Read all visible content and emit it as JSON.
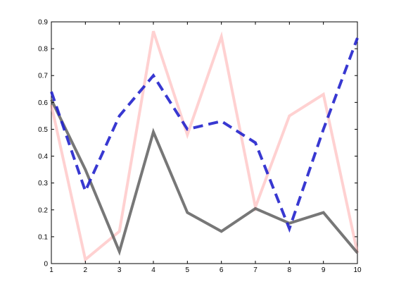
{
  "chart_data": {
    "type": "line",
    "x": [
      1,
      2,
      3,
      4,
      5,
      6,
      7,
      8,
      9,
      10
    ],
    "xlim": [
      1,
      10
    ],
    "ylim": [
      0,
      0.9
    ],
    "xticks": [
      "1",
      "2",
      "3",
      "4",
      "5",
      "6",
      "7",
      "8",
      "9",
      "10"
    ],
    "yticks": [
      "0",
      "0.1",
      "0.2",
      "0.3",
      "0.4",
      "0.5",
      "0.6",
      "0.7",
      "0.8",
      "0.9"
    ],
    "grid": false,
    "legend": "none",
    "title": "",
    "xlabel": "",
    "ylabel": "",
    "series": [
      {
        "values": [
          0.59,
          0.015,
          0.12,
          0.865,
          0.48,
          0.845,
          0.21,
          0.55,
          0.63,
          0.04
        ],
        "color": "#ff9999",
        "opacity": 0.45,
        "style": "solid"
      },
      {
        "values": [
          0.61,
          0.35,
          0.045,
          0.49,
          0.19,
          0.12,
          0.205,
          0.15,
          0.19,
          0.04
        ],
        "color": "#555555",
        "opacity": 0.8,
        "style": "solid"
      },
      {
        "values": [
          0.64,
          0.27,
          0.55,
          0.7,
          0.5,
          0.53,
          0.45,
          0.13,
          0.5,
          0.84
        ],
        "color": "#2222cc",
        "opacity": 0.9,
        "style": "dashed"
      }
    ]
  }
}
